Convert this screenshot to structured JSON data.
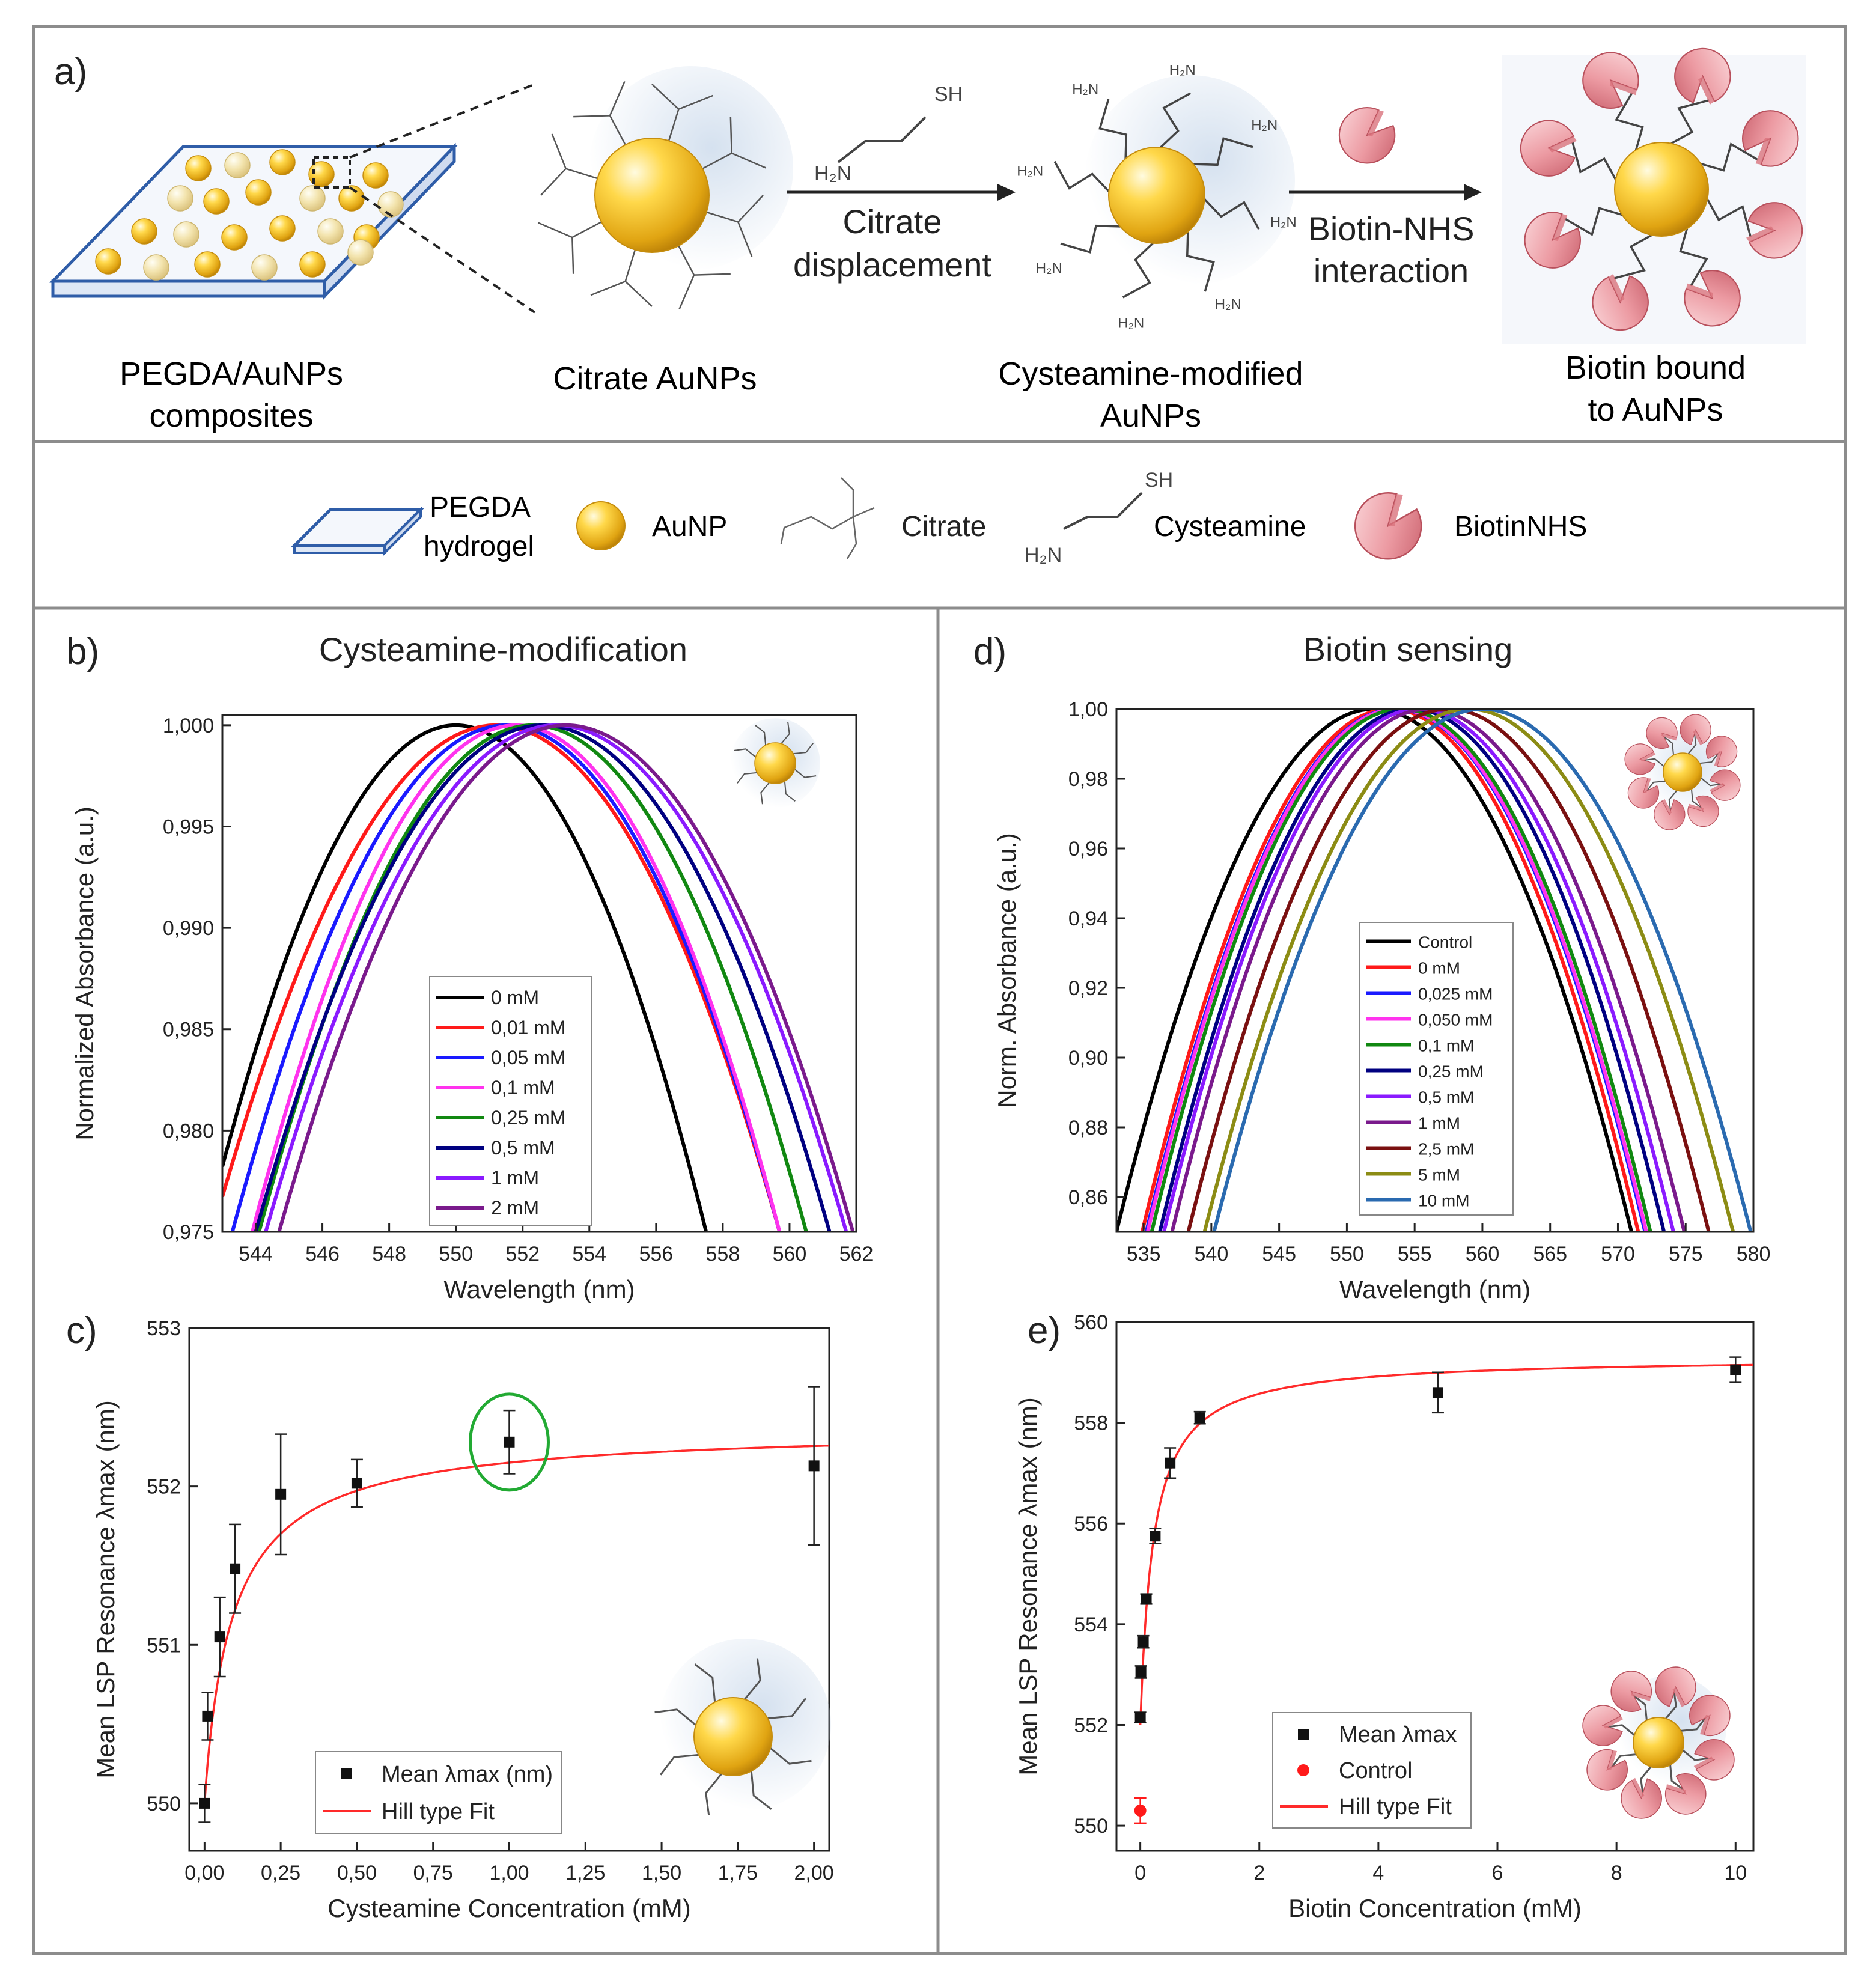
{
  "panel_a": {
    "letter": "a)",
    "steps": [
      {
        "id": "pegda",
        "label": [
          "PEGDA/AuNPs",
          "composites"
        ]
      },
      {
        "id": "citrate",
        "label": [
          "Citrate AuNPs"
        ]
      },
      {
        "id": "cysteamine",
        "label": [
          "Cysteamine-modified",
          "AuNPs"
        ]
      },
      {
        "id": "biotin",
        "label": [
          "Biotin bound",
          "to AuNPs"
        ]
      }
    ],
    "arrows": [
      {
        "label": [
          "Citrate",
          "displacement"
        ],
        "reagent": {
          "sh": "SH",
          "h2n": "H₂N"
        }
      },
      {
        "label": [
          "Biotin-NHS",
          "interaction"
        ]
      }
    ],
    "ligand_labels": {
      "nh2": "H₂N",
      "sh": "SH"
    }
  },
  "legend_panel": {
    "items": [
      {
        "id": "pegda",
        "label": [
          "PEGDA",
          "hydrogel"
        ]
      },
      {
        "id": "aunp",
        "label": [
          "AuNP"
        ]
      },
      {
        "id": "citrate",
        "label": [
          "Citrate"
        ]
      },
      {
        "id": "cysteamine",
        "label": [
          "Cysteamine"
        ],
        "sh": "SH",
        "h2n": "H₂N"
      },
      {
        "id": "biotin",
        "label": [
          "BiotinNHS"
        ]
      }
    ]
  },
  "colors": {
    "gold": "#e8b41a",
    "gold_light": "#fff3b0",
    "pink": "#e58a93",
    "pink_light": "#f8cdd1",
    "frame": "#8c8c8c",
    "hydrogel": "#2f5da8"
  },
  "chart_data": [
    {
      "id": "b",
      "letter": "b)",
      "type": "line",
      "title": "Cysteamine-modification",
      "xlabel": "Wavelength (nm)",
      "ylabel": "Normalized Absorbance (a.u.)",
      "xlim": [
        543,
        562
      ],
      "ylim": [
        0.975,
        1.0005
      ],
      "xticks": [
        544,
        546,
        548,
        550,
        552,
        554,
        556,
        558,
        560,
        562
      ],
      "xtick_labels": [
        "544",
        "546",
        "548",
        "550",
        "552",
        "554",
        "556",
        "558",
        "560",
        "562"
      ],
      "yticks": [
        0.975,
        0.98,
        0.985,
        0.99,
        0.995,
        1.0
      ],
      "ytick_labels": [
        "0,975",
        "0,980",
        "0,985",
        "0,990",
        "0,995",
        "1,000"
      ],
      "legend": "center",
      "series": [
        {
          "name": "0 mM",
          "color": "#000000",
          "center": 550.0,
          "width": 7.5
        },
        {
          "name": "0,01 mM",
          "color": "#ff1a1a",
          "center": 551.2,
          "width": 8.5
        },
        {
          "name": "0,05 mM",
          "color": "#1a1aff",
          "center": 551.5,
          "width": 8.2
        },
        {
          "name": "0,1 mM",
          "color": "#ff33ee",
          "center": 551.8,
          "width": 7.9
        },
        {
          "name": "0,25 mM",
          "color": "#118811",
          "center": 552.3,
          "width": 8.2
        },
        {
          "name": "0,5 mM",
          "color": "#000080",
          "center": 552.6,
          "width": 8.6
        },
        {
          "name": "1 mM",
          "color": "#8a1aff",
          "center": 553.0,
          "width": 8.7
        },
        {
          "name": "2 mM",
          "color": "#7a1a8c",
          "center": 553.3,
          "width": 8.6
        }
      ]
    },
    {
      "id": "d",
      "letter": "d)",
      "type": "line",
      "title": "Biotin sensing",
      "xlabel": "Wavelength (nm)",
      "ylabel": "Norm. Absorbance (a.u.)",
      "xlim": [
        533,
        580
      ],
      "ylim": [
        0.85,
        1.0
      ],
      "xticks": [
        535,
        540,
        545,
        550,
        555,
        560,
        565,
        570,
        575,
        580
      ],
      "xtick_labels": [
        "535",
        "540",
        "545",
        "550",
        "555",
        "560",
        "565",
        "570",
        "575",
        "580"
      ],
      "yticks": [
        0.86,
        0.88,
        0.9,
        0.92,
        0.94,
        0.96,
        0.98,
        1.0
      ],
      "ytick_labels": [
        "0,86",
        "0,88",
        "0,90",
        "0,92",
        "0,94",
        "0,96",
        "0,98",
        "1,00"
      ],
      "legend": "lower-center",
      "series": [
        {
          "name": "Control",
          "color": "#000000",
          "center": 552.0,
          "width": 19.0
        },
        {
          "name": "0 mM",
          "color": "#ff1a1a",
          "center": 553.2,
          "width": 18.3
        },
        {
          "name": "0,025 mM",
          "color": "#1a1aff",
          "center": 553.6,
          "width": 18.4
        },
        {
          "name": "0,050 mM",
          "color": "#ff33ee",
          "center": 553.7,
          "width": 18.4
        },
        {
          "name": "0,1 mM",
          "color": "#118811",
          "center": 554.0,
          "width": 18.4
        },
        {
          "name": "0,25 mM",
          "color": "#000080",
          "center": 554.8,
          "width": 18.6
        },
        {
          "name": "0,5 mM",
          "color": "#8a1aff",
          "center": 555.3,
          "width": 18.8
        },
        {
          "name": "1 mM",
          "color": "#7a1a8c",
          "center": 556.0,
          "width": 18.9
        },
        {
          "name": "2,5 mM",
          "color": "#7a1010",
          "center": 557.5,
          "width": 19.2
        },
        {
          "name": "5 mM",
          "color": "#8c8c14",
          "center": 559.0,
          "width": 19.5
        },
        {
          "name": "10 mM",
          "color": "#2a6ab0",
          "center": 560.0,
          "width": 19.8
        }
      ]
    },
    {
      "id": "c",
      "letter": "c)",
      "type": "scatter",
      "xlabel": "Cysteamine Concentration (mM)",
      "ylabel": "Mean LSP Resonance λmax (nm)",
      "xlim": [
        -0.05,
        2.05
      ],
      "ylim": [
        549.7,
        553
      ],
      "xticks": [
        0,
        0.25,
        0.5,
        0.75,
        1.0,
        1.25,
        1.5,
        1.75,
        2.0
      ],
      "xtick_labels": [
        "0,00",
        "0,25",
        "0,50",
        "0,75",
        "1,00",
        "1,25",
        "1,50",
        "1,75",
        "2,00"
      ],
      "yticks": [
        550,
        551,
        552,
        553
      ],
      "ytick_labels": [
        "550",
        "551",
        "552",
        "553"
      ],
      "legend": "bottom-center",
      "legend_labels": {
        "mean": "Mean λmax (nm)",
        "fit": "Hill type Fit"
      },
      "points": [
        {
          "x": 0.0,
          "y": 550.0,
          "err": 0.12
        },
        {
          "x": 0.01,
          "y": 550.55,
          "err": 0.15
        },
        {
          "x": 0.05,
          "y": 551.05,
          "err": 0.25
        },
        {
          "x": 0.1,
          "y": 551.48,
          "err": 0.28
        },
        {
          "x": 0.25,
          "y": 551.95,
          "err": 0.38
        },
        {
          "x": 0.5,
          "y": 552.02,
          "err": 0.15
        },
        {
          "x": 1.0,
          "y": 552.28,
          "err": 0.2
        },
        {
          "x": 2.0,
          "y": 552.13,
          "err": 0.5
        }
      ],
      "fit": {
        "y0": 550.0,
        "dy": 2.38,
        "k": 0.095,
        "n": 0.95,
        "color": "#ff2a2a"
      },
      "highlight": {
        "x": 1.0,
        "y": 552.28,
        "color": "#22aa33"
      }
    },
    {
      "id": "e",
      "letter": "e)",
      "type": "scatter",
      "xlabel": "Biotin Concentration (mM)",
      "ylabel": "Mean LSP Resonance λmax (nm)",
      "xlim": [
        -0.4,
        10.3
      ],
      "ylim": [
        549.5,
        560
      ],
      "xticks": [
        0,
        2,
        4,
        6,
        8,
        10
      ],
      "xtick_labels": [
        "0",
        "2",
        "4",
        "6",
        "8",
        "10"
      ],
      "yticks": [
        550,
        552,
        554,
        556,
        558,
        560
      ],
      "ytick_labels": [
        "550",
        "552",
        "554",
        "556",
        "558",
        "560"
      ],
      "legend": "bottom-center",
      "legend_labels": {
        "mean": "Mean λmax",
        "control": "Control",
        "fit": "Hill type Fit"
      },
      "points": [
        {
          "x": 0.0,
          "y": 552.15,
          "err": 0.1
        },
        {
          "x": 0.01,
          "y": 553.05,
          "err": 0.12
        },
        {
          "x": 0.05,
          "y": 553.65,
          "err": 0.12
        },
        {
          "x": 0.1,
          "y": 554.5,
          "err": 0.1
        },
        {
          "x": 0.25,
          "y": 555.75,
          "err": 0.15
        },
        {
          "x": 0.5,
          "y": 557.2,
          "err": 0.3
        },
        {
          "x": 1.0,
          "y": 558.1,
          "err": 0.12
        },
        {
          "x": 5.0,
          "y": 558.6,
          "err": 0.4
        },
        {
          "x": 10.0,
          "y": 559.05,
          "err": 0.25
        }
      ],
      "control": {
        "x": 0.0,
        "y": 550.3,
        "err": 0.25,
        "color": "#ff1a1a"
      },
      "fit": {
        "y0": 552.0,
        "dy": 7.3,
        "k": 0.22,
        "n": 1.0,
        "color": "#ff2a2a"
      }
    }
  ]
}
